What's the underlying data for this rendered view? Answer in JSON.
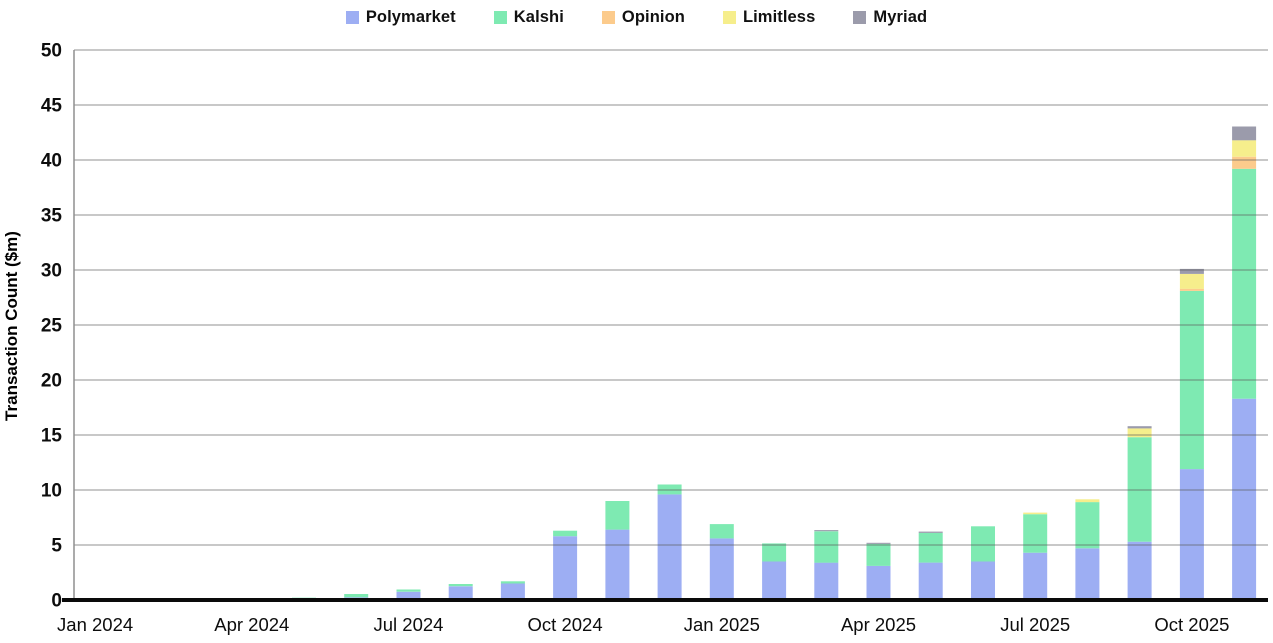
{
  "page": {
    "background": "#ffffff"
  },
  "chart_data": {
    "type": "bar",
    "stacked": true,
    "title": "",
    "xlabel": "",
    "ylabel": "Transaction Count ($m)",
    "ylim": [
      0,
      50
    ],
    "ytick_step": 5,
    "grid": true,
    "legend_position": "top",
    "categories": [
      "Jan 2024",
      "Feb 2024",
      "Mar 2024",
      "Apr 2024",
      "May 2024",
      "Jun 2024",
      "Jul 2024",
      "Aug 2024",
      "Sep 2024",
      "Oct 2024",
      "Nov 2024",
      "Dec 2024",
      "Jan 2025",
      "Feb 2025",
      "Mar 2025",
      "Apr 2025",
      "May 2025",
      "Jun 2025",
      "Jul 2025",
      "Aug 2025",
      "Sep 2025",
      "Oct 2025",
      "Nov 2025"
    ],
    "x_ticks": [
      {
        "index": 0,
        "label": "Jan 2024"
      },
      {
        "index": 3,
        "label": "Apr 2024"
      },
      {
        "index": 6,
        "label": "Jul 2024"
      },
      {
        "index": 9,
        "label": "Oct 2024"
      },
      {
        "index": 12,
        "label": "Jan 2025"
      },
      {
        "index": 15,
        "label": "Apr 2025"
      },
      {
        "index": 18,
        "label": "Jul 2025"
      },
      {
        "index": 21,
        "label": "Oct 2025"
      }
    ],
    "series": [
      {
        "name": "Polymarket",
        "color": "#9daef3",
        "values": [
          0.05,
          0.04,
          0.04,
          0.05,
          0.06,
          0.25,
          0.75,
          1.25,
          1.5,
          5.8,
          6.4,
          9.6,
          5.6,
          3.5,
          3.4,
          3.1,
          3.4,
          3.5,
          4.3,
          4.7,
          5.3,
          11.9,
          18.3
        ]
      },
      {
        "name": "Kalshi",
        "color": "#7eeab2",
        "values": [
          0.1,
          0.12,
          0.12,
          0.12,
          0.15,
          0.3,
          0.2,
          0.2,
          0.2,
          0.5,
          2.6,
          0.9,
          1.3,
          1.65,
          2.85,
          2.0,
          2.7,
          3.2,
          3.5,
          4.2,
          9.5,
          16.2,
          20.9
        ]
      },
      {
        "name": "Opinion",
        "color": "#fccb8c",
        "values": [
          0,
          0,
          0,
          0,
          0,
          0,
          0,
          0,
          0,
          0,
          0,
          0,
          0,
          0,
          0,
          0,
          0,
          0,
          0,
          0,
          0,
          0.2,
          1.1
        ]
      },
      {
        "name": "Limitless",
        "color": "#f6ee8c",
        "values": [
          0,
          0,
          0,
          0,
          0,
          0,
          0,
          0,
          0,
          0,
          0,
          0,
          0,
          0,
          0,
          0,
          0,
          0,
          0.15,
          0.25,
          0.8,
          1.35,
          1.5
        ]
      },
      {
        "name": "Myriad",
        "color": "#9b9bab",
        "values": [
          0,
          0,
          0,
          0,
          0,
          0,
          0,
          0,
          0,
          0,
          0,
          0,
          0,
          0,
          0.1,
          0.1,
          0.12,
          0,
          0,
          0,
          0.2,
          0.45,
          1.25
        ]
      }
    ],
    "axis_colors": {
      "x_axis": "#0a0a0a",
      "y_axis": "#8f8f8f",
      "gridline": "#a9a9a9"
    }
  }
}
